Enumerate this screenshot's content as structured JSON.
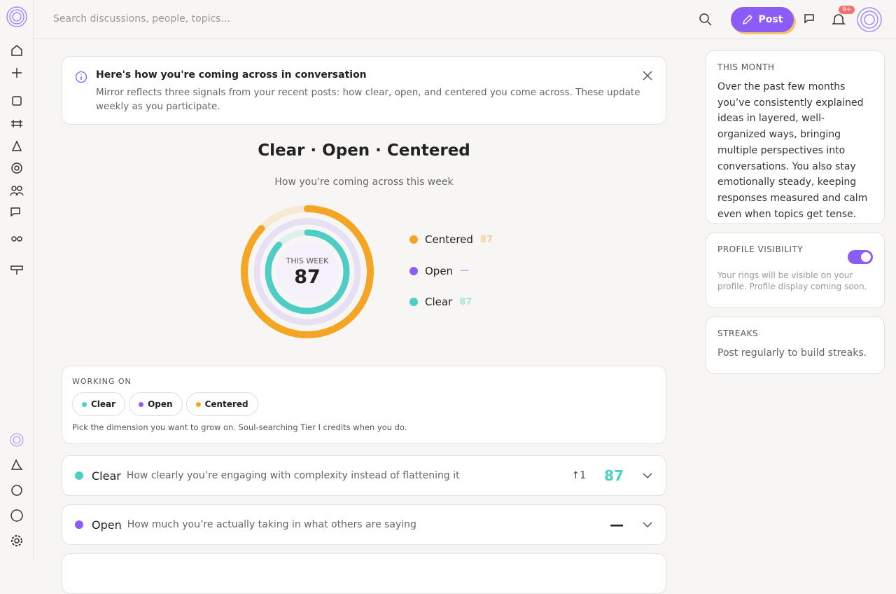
{
  "search": {
    "placeholder": "Search discussions, people, topics..."
  },
  "header": {
    "post_button": "Post",
    "notification_badge": "9+"
  },
  "banner": {
    "title": "Here's how you're coming across in conversation",
    "body": "Mirror reflects three signals from your recent posts: how clear, open, and centered you come across. These update weekly as you participate."
  },
  "mirror": {
    "title": "Clear · Open · Centered",
    "subtitle": "How you're coming across this week",
    "center_label": "THIS WEEK",
    "center_value": 87,
    "rings": [
      {
        "name": "Centered",
        "color": "#f5a524",
        "value": 87
      },
      {
        "name": "Open",
        "color": "#8b5cf6",
        "value": "—"
      },
      {
        "name": "Clear",
        "color": "#4ecdc4",
        "value": 87
      }
    ]
  },
  "working_on": {
    "label": "WORKING ON",
    "chips": [
      {
        "name": "Clear",
        "color": "#4ecdc4"
      },
      {
        "name": "Open",
        "color": "#8b5cf6"
      },
      {
        "name": "Centered",
        "color": "#f5a524"
      }
    ],
    "note": "Pick the dimension you want to grow on. Soul-searching Tier I credits when you do."
  },
  "dimensions": [
    {
      "name": "Clear",
      "color": "#4ecdc4",
      "description": "How clearly you’re engaging with complexity instead of flattening it",
      "trend": "↑1",
      "score": 87
    },
    {
      "name": "Open",
      "color": "#8b5cf6",
      "description": "How much you’re actually taking in what others are saying",
      "score": "—"
    }
  ],
  "sidebar": {
    "this_month": {
      "label": "THIS MONTH",
      "body": "Over the past few months you’ve consistently explained ideas in layered, well-organized ways, bringing multiple perspectives into conversations. You also stay emotionally steady, keeping responses measured and calm even when topics get tense."
    },
    "profile_visibility": {
      "label": "PROFILE VISIBILITY",
      "enabled": true,
      "body": "Your rings will be visible on your profile. Profile display coming soon."
    },
    "streaks": {
      "label": "STREAKS",
      "body": "Post regularly to build streaks."
    }
  }
}
